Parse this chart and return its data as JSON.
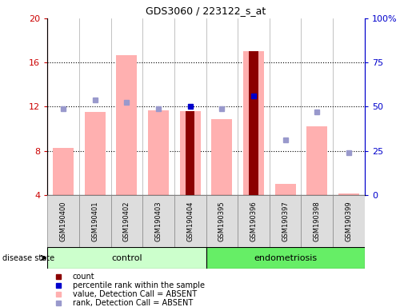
{
  "title": "GDS3060 / 223122_s_at",
  "samples": [
    "GSM190400",
    "GSM190401",
    "GSM190402",
    "GSM190403",
    "GSM190404",
    "GSM190395",
    "GSM190396",
    "GSM190397",
    "GSM190398",
    "GSM190399"
  ],
  "ylim_left": [
    4,
    20
  ],
  "ylim_right": [
    0,
    100
  ],
  "yticks_left": [
    4,
    8,
    12,
    16,
    20
  ],
  "yticks_right": [
    0,
    25,
    50,
    75,
    100
  ],
  "yticklabels_right": [
    "0",
    "25",
    "50",
    "75",
    "100%"
  ],
  "pink_bars": [
    8.3,
    11.5,
    16.7,
    11.7,
    11.6,
    10.9,
    17.0,
    5.0,
    10.2,
    4.1
  ],
  "dark_red_bars": [
    null,
    null,
    null,
    null,
    11.6,
    null,
    17.0,
    null,
    null,
    null
  ],
  "blue_dots": [
    null,
    null,
    null,
    null,
    12.0,
    null,
    13.0,
    null,
    null,
    null
  ],
  "rank_dots": [
    11.8,
    12.6,
    12.4,
    11.8,
    null,
    11.8,
    null,
    9.0,
    11.5,
    7.8
  ],
  "color_pink": "#ffb0b0",
  "color_dark_red": "#8b0000",
  "color_blue": "#0000cc",
  "color_rank": "#9999cc",
  "color_control_bg": "#ccffcc",
  "color_endometriosis_bg": "#66ee66",
  "color_sample_bg": "#dddddd",
  "left_axis_color": "#cc0000",
  "right_axis_color": "#0000cc",
  "n_control": 5,
  "n_endo": 5,
  "figsize": [
    5.15,
    3.84
  ],
  "dpi": 100
}
